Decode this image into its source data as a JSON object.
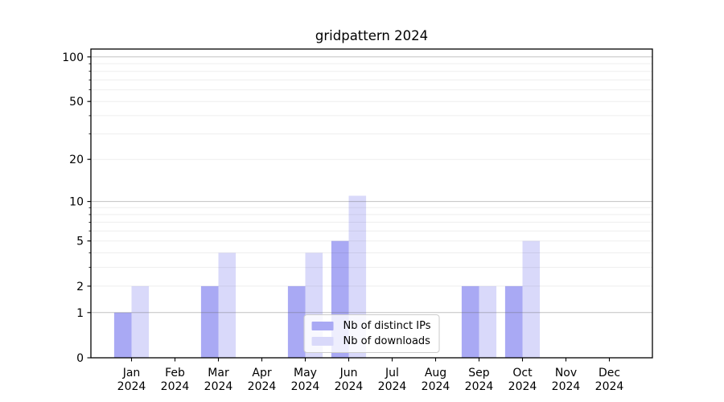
{
  "chart_data": {
    "type": "bar",
    "title": "gridpattern 2024",
    "categories": [
      "Jan",
      "Feb",
      "Mar",
      "Apr",
      "May",
      "Jun",
      "Jul",
      "Aug",
      "Sep",
      "Oct",
      "Nov",
      "Dec"
    ],
    "category_year": "2024",
    "series": [
      {
        "name": "Nb of distinct IPs",
        "color": "#a9a9f4",
        "values": [
          1,
          0,
          2,
          0,
          2,
          5,
          0,
          0,
          2,
          2,
          0,
          0
        ]
      },
      {
        "name": "Nb of downloads",
        "color": "#d9d9fa",
        "values": [
          2,
          0,
          4,
          0,
          4,
          11,
          0,
          0,
          2,
          5,
          0,
          0
        ]
      }
    ],
    "y_scale": "log1p",
    "ylim": [
      0,
      113
    ],
    "y_ticks": [
      0,
      1,
      2,
      5,
      10,
      20,
      50,
      100
    ],
    "grid": {
      "on": true,
      "major": [
        1,
        10,
        100
      ],
      "minor": [
        2,
        3,
        4,
        5,
        6,
        7,
        8,
        9,
        20,
        30,
        40,
        50,
        60,
        70,
        80,
        90
      ]
    },
    "legend_position": "lower center"
  }
}
